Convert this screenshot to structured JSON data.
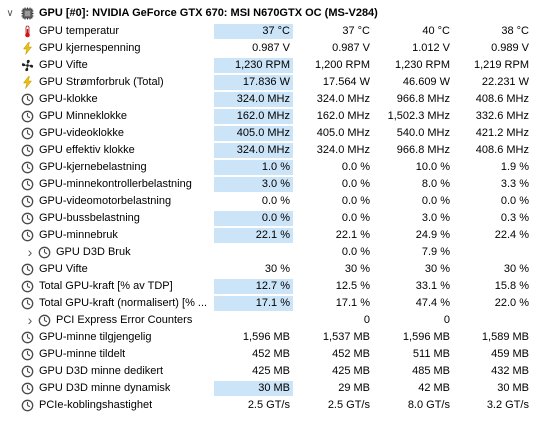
{
  "group": {
    "label": "GPU [#0]: NVIDIA GeForce GTX 670: MSI N670GTX OC (MS-V284)"
  },
  "icons": [
    "gpu-chip-icon",
    "thermometer-icon",
    "lightning-icon",
    "fan-icon",
    "clock-icon",
    "subgroup-icon"
  ],
  "rows": [
    {
      "label": "GPU temperatur",
      "c1": "37 °C",
      "c2": "37 °C",
      "c3": "40 °C",
      "c4": "38 °C",
      "icon": "thermometer",
      "hl": true
    },
    {
      "label": "GPU kjernespenning",
      "c1": "0.987 V",
      "c2": "0.987 V",
      "c3": "1.012 V",
      "c4": "0.989 V",
      "icon": "lightning",
      "hl": false
    },
    {
      "label": "GPU Vifte",
      "c1": "1,230 RPM",
      "c2": "1,200 RPM",
      "c3": "1,230 RPM",
      "c4": "1,219 RPM",
      "icon": "fan",
      "hl": true
    },
    {
      "label": "GPU Strømforbruk (Total)",
      "c1": "17.836 W",
      "c2": "17.564 W",
      "c3": "46.609 W",
      "c4": "22.231 W",
      "icon": "lightning",
      "hl": true
    },
    {
      "label": "GPU-klokke",
      "c1": "324.0 MHz",
      "c2": "324.0 MHz",
      "c3": "966.8 MHz",
      "c4": "408.6 MHz",
      "icon": "clock",
      "hl": true
    },
    {
      "label": "GPU Minneklokke",
      "c1": "162.0 MHz",
      "c2": "162.0 MHz",
      "c3": "1,502.3 MHz",
      "c4": "332.6 MHz",
      "icon": "clock",
      "hl": true
    },
    {
      "label": "GPU-videoklokke",
      "c1": "405.0 MHz",
      "c2": "405.0 MHz",
      "c3": "540.0 MHz",
      "c4": "421.2 MHz",
      "icon": "clock",
      "hl": true
    },
    {
      "label": "GPU effektiv klokke",
      "c1": "324.0 MHz",
      "c2": "324.0 MHz",
      "c3": "966.8 MHz",
      "c4": "408.6 MHz",
      "icon": "clock",
      "hl": true
    },
    {
      "label": "GPU-kjernebelastning",
      "c1": "1.0 %",
      "c2": "0.0 %",
      "c3": "10.0 %",
      "c4": "1.9 %",
      "icon": "clock",
      "hl": true
    },
    {
      "label": "GPU-minnekontrollerbelastning",
      "c1": "3.0 %",
      "c2": "0.0 %",
      "c3": "8.0 %",
      "c4": "3.3 %",
      "icon": "clock",
      "hl": true
    },
    {
      "label": "GPU-videomotorbelastning",
      "c1": "0.0 %",
      "c2": "0.0 %",
      "c3": "0.0 %",
      "c4": "0.0 %",
      "icon": "clock",
      "hl": false
    },
    {
      "label": "GPU-bussbelastning",
      "c1": "0.0 %",
      "c2": "0.0 %",
      "c3": "3.0 %",
      "c4": "0.3 %",
      "icon": "clock",
      "hl": true
    },
    {
      "label": "GPU-minnebruk",
      "c1": "22.1 %",
      "c2": "22.1 %",
      "c3": "24.9 %",
      "c4": "22.4 %",
      "icon": "clock",
      "hl": true
    },
    {
      "label": "GPU D3D Bruk",
      "c1": "",
      "c2": "0.0 %",
      "c3": "7.9 %",
      "c4": "",
      "icon": "subgroup",
      "hl": false,
      "sub": true
    },
    {
      "label": "GPU Vifte",
      "c1": "30 %",
      "c2": "30 %",
      "c3": "30 %",
      "c4": "30 %",
      "icon": "clock",
      "hl": false
    },
    {
      "label": "Total GPU-kraft [% av TDP]",
      "c1": "12.7 %",
      "c2": "12.5 %",
      "c3": "33.1 %",
      "c4": "15.8 %",
      "icon": "clock",
      "hl": true
    },
    {
      "label": "Total GPU-kraft (normalisert) [% ...",
      "c1": "17.1 %",
      "c2": "17.1 %",
      "c3": "47.4 %",
      "c4": "22.0 %",
      "icon": "clock",
      "hl": true
    },
    {
      "label": "PCI Express Error Counters",
      "c1": "",
      "c2": "0",
      "c3": "0",
      "c4": "",
      "icon": "subgroup",
      "hl": false,
      "sub": true
    },
    {
      "label": "GPU-minne tilgjengelig",
      "c1": "1,596 MB",
      "c2": "1,537 MB",
      "c3": "1,596 MB",
      "c4": "1,589 MB",
      "icon": "clock",
      "hl": false
    },
    {
      "label": "GPU-minne tildelt",
      "c1": "452 MB",
      "c2": "452 MB",
      "c3": "511 MB",
      "c4": "459 MB",
      "icon": "clock",
      "hl": false
    },
    {
      "label": "GPU D3D minne dedikert",
      "c1": "425 MB",
      "c2": "425 MB",
      "c3": "485 MB",
      "c4": "432 MB",
      "icon": "clock",
      "hl": false
    },
    {
      "label": "GPU D3D minne dynamisk",
      "c1": "30 MB",
      "c2": "29 MB",
      "c3": "42 MB",
      "c4": "30 MB",
      "icon": "clock",
      "hl": true
    },
    {
      "label": "PCIe-koblingshastighet",
      "c1": "2.5 GT/s",
      "c2": "2.5 GT/s",
      "c3": "8.0 GT/s",
      "c4": "3.2 GT/s",
      "icon": "clock",
      "hl": false
    }
  ]
}
